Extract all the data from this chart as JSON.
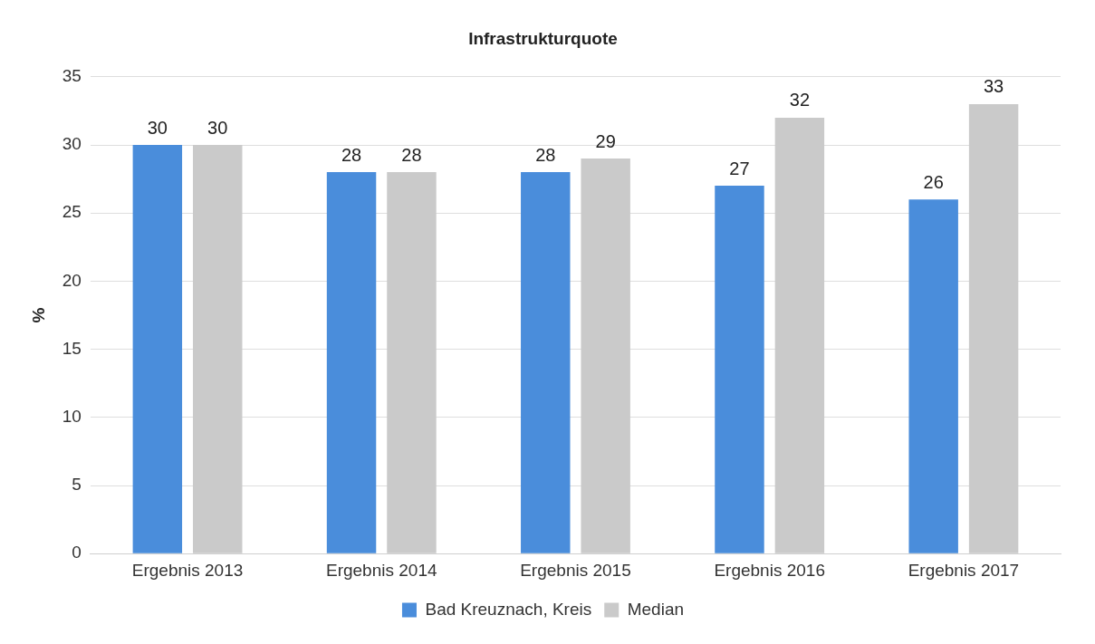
{
  "chart_data": {
    "type": "bar",
    "title": "Infrastrukturquote",
    "ylabel": "%",
    "categories": [
      "Ergebnis 2013",
      "Ergebnis 2014",
      "Ergebnis 2015",
      "Ergebnis 2016",
      "Ergebnis 2017"
    ],
    "series": [
      {
        "name": "Bad Kreuznach, Kreis",
        "color": "#4a8ddb",
        "values": [
          30,
          28,
          28,
          27,
          26
        ]
      },
      {
        "name": "Median",
        "color": "#cacaca",
        "values": [
          30,
          28,
          29,
          32,
          33
        ]
      }
    ],
    "ylim": [
      0,
      35
    ],
    "yticks": [
      0,
      5,
      10,
      15,
      20,
      25,
      30,
      35
    ],
    "grid": "y",
    "legend": "bottom",
    "data_labels": true
  }
}
